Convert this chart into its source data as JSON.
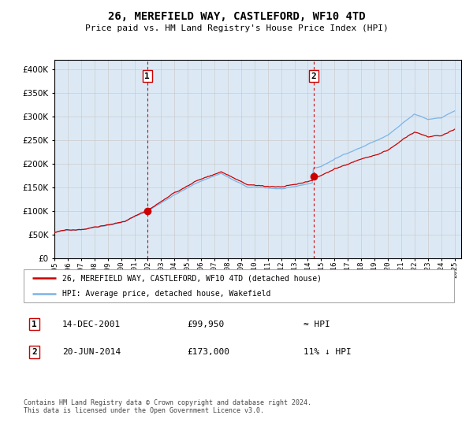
{
  "title": "26, MEREFIELD WAY, CASTLEFORD, WF10 4TD",
  "subtitle": "Price paid vs. HM Land Registry's House Price Index (HPI)",
  "legend_line1": "26, MEREFIELD WAY, CASTLEFORD, WF10 4TD (detached house)",
  "legend_line2": "HPI: Average price, detached house, Wakefield",
  "annotation1_label": "1",
  "annotation1_date": "14-DEC-2001",
  "annotation1_price": "£99,950",
  "annotation1_hpi": "≈ HPI",
  "annotation2_label": "2",
  "annotation2_date": "20-JUN-2014",
  "annotation2_price": "£173,000",
  "annotation2_hpi": "11% ↓ HPI",
  "footnote": "Contains HM Land Registry data © Crown copyright and database right 2024.\nThis data is licensed under the Open Government Licence v3.0.",
  "hpi_color": "#7ab4e8",
  "price_color": "#cc0000",
  "marker_color": "#cc0000",
  "bg_color": "#dce9f5",
  "shade_color": "#dce9f5",
  "grid_color": "#cccccc",
  "vline_color": "#cc0000",
  "ylim": [
    0,
    420000
  ],
  "yticks": [
    0,
    50000,
    100000,
    150000,
    200000,
    250000,
    300000,
    350000,
    400000
  ],
  "x_start_year": 1995,
  "x_end_year": 2025,
  "purchase1_year": 2001.958,
  "purchase1_value": 99950,
  "purchase2_year": 2014.458,
  "purchase2_value": 173000
}
